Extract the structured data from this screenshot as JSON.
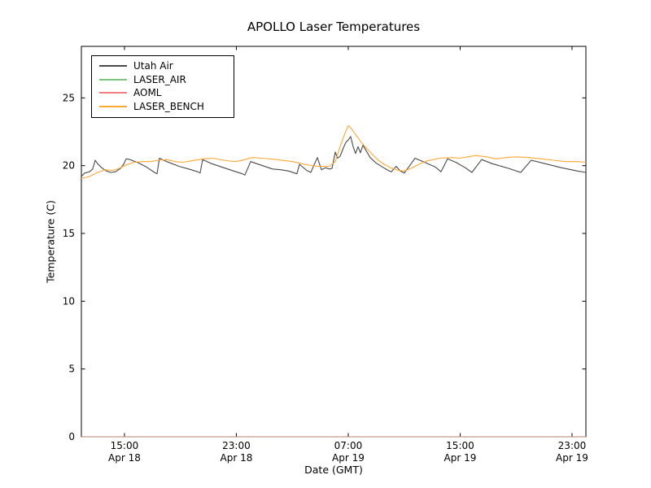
{
  "title": "APOLLO Laser Temperatures",
  "xlabel": "Date (GMT)",
  "ylabel": "Temperature (C)",
  "legend": {
    "position": "upper left",
    "items": [
      {
        "label": "Utah Air",
        "color": "#4a4a4a"
      },
      {
        "label": "LASER_AIR",
        "color": "#7cc47c"
      },
      {
        "label": "AOML",
        "color": "#f28080"
      },
      {
        "label": "LASER_BENCH",
        "color": "#ffa733"
      }
    ]
  },
  "chart_data": {
    "type": "line",
    "title": "APOLLO Laser Temperatures",
    "xlabel": "Date (GMT)",
    "ylabel": "Temperature (C)",
    "grid": false,
    "legend_position": "upper left",
    "x_unit": "hours since Apr 18 00:00 GMT",
    "y_unit": "degrees C",
    "xlim": [
      11.92,
      47.99
    ],
    "ylim": [
      0,
      28.8
    ],
    "y_ticks": [
      0,
      5,
      10,
      15,
      20,
      25
    ],
    "x_ticks": [
      {
        "value": 15,
        "line1": "15:00",
        "line2": "Apr 18"
      },
      {
        "value": 23,
        "line1": "23:00",
        "line2": "Apr 18"
      },
      {
        "value": 31,
        "line1": "07:00",
        "line2": "Apr 19"
      },
      {
        "value": 39,
        "line1": "15:00",
        "line2": "Apr 19"
      },
      {
        "value": 47,
        "line1": "23:00",
        "line2": "Apr 19"
      }
    ],
    "series": [
      {
        "name": "Utah Air",
        "color": "#4a4a4a",
        "points": [
          [
            11.92,
            19.2
          ],
          [
            12.15,
            19.45
          ],
          [
            12.5,
            19.55
          ],
          [
            12.72,
            19.75
          ],
          [
            12.91,
            20.4
          ],
          [
            13.08,
            20.15
          ],
          [
            13.37,
            19.85
          ],
          [
            13.72,
            19.6
          ],
          [
            14.01,
            19.5
          ],
          [
            14.36,
            19.55
          ],
          [
            14.71,
            19.8
          ],
          [
            14.94,
            20.1
          ],
          [
            15.12,
            20.5
          ],
          [
            15.41,
            20.45
          ],
          [
            15.99,
            20.2
          ],
          [
            16.57,
            19.9
          ],
          [
            17.15,
            19.5
          ],
          [
            17.33,
            19.4
          ],
          [
            17.5,
            20.55
          ],
          [
            18.03,
            20.3
          ],
          [
            18.9,
            19.95
          ],
          [
            19.77,
            19.7
          ],
          [
            20.24,
            19.55
          ],
          [
            20.41,
            19.45
          ],
          [
            20.59,
            20.45
          ],
          [
            21.23,
            20.15
          ],
          [
            22.1,
            19.85
          ],
          [
            22.97,
            19.55
          ],
          [
            23.44,
            19.4
          ],
          [
            23.61,
            19.3
          ],
          [
            24.02,
            20.3
          ],
          [
            24.72,
            20.05
          ],
          [
            25.59,
            19.75
          ],
          [
            26.17,
            19.7
          ],
          [
            26.75,
            19.6
          ],
          [
            27.33,
            19.4
          ],
          [
            27.51,
            20.1
          ],
          [
            28.03,
            19.65
          ],
          [
            28.32,
            19.5
          ],
          [
            28.79,
            20.6
          ],
          [
            29.08,
            19.7
          ],
          [
            29.37,
            19.85
          ],
          [
            29.66,
            19.75
          ],
          [
            29.84,
            19.8
          ],
          [
            30.07,
            21.0
          ],
          [
            30.24,
            20.55
          ],
          [
            30.42,
            20.7
          ],
          [
            30.65,
            21.3
          ],
          [
            30.82,
            21.7
          ],
          [
            31.0,
            21.9
          ],
          [
            31.17,
            22.15
          ],
          [
            31.35,
            21.4
          ],
          [
            31.52,
            20.9
          ],
          [
            31.7,
            21.4
          ],
          [
            31.87,
            20.95
          ],
          [
            32.05,
            21.5
          ],
          [
            32.28,
            21.1
          ],
          [
            32.57,
            20.6
          ],
          [
            32.98,
            20.2
          ],
          [
            33.44,
            19.9
          ],
          [
            33.85,
            19.65
          ],
          [
            34.08,
            19.55
          ],
          [
            34.43,
            19.95
          ],
          [
            34.72,
            19.6
          ],
          [
            35.01,
            19.45
          ],
          [
            35.77,
            20.55
          ],
          [
            36.35,
            20.3
          ],
          [
            37.22,
            19.9
          ],
          [
            37.63,
            19.55
          ],
          [
            38.1,
            20.5
          ],
          [
            38.68,
            20.25
          ],
          [
            39.37,
            19.85
          ],
          [
            39.84,
            19.5
          ],
          [
            40.54,
            20.45
          ],
          [
            41.29,
            20.15
          ],
          [
            42.46,
            19.8
          ],
          [
            43.33,
            19.5
          ],
          [
            44.08,
            20.4
          ],
          [
            45.07,
            20.15
          ],
          [
            46.23,
            19.85
          ],
          [
            47.4,
            19.6
          ],
          [
            47.99,
            19.5
          ]
        ]
      },
      {
        "name": "LASER_AIR",
        "color": "#7cc47c",
        "flat_overlay_on_axis": true,
        "points": [
          [
            11.92,
            0
          ],
          [
            47.99,
            0
          ]
        ]
      },
      {
        "name": "AOML",
        "color": "#f28080",
        "flat_overlay_on_axis": true,
        "points": [
          [
            11.92,
            0
          ],
          [
            47.99,
            0
          ]
        ]
      },
      {
        "name": "LASER_BENCH",
        "color": "#ffa733",
        "points": [
          [
            11.92,
            19.05
          ],
          [
            12.5,
            19.2
          ],
          [
            13.08,
            19.5
          ],
          [
            13.66,
            19.7
          ],
          [
            14.13,
            19.65
          ],
          [
            14.54,
            19.75
          ],
          [
            15.12,
            20.05
          ],
          [
            15.7,
            20.25
          ],
          [
            16.28,
            20.3
          ],
          [
            16.86,
            20.3
          ],
          [
            17.44,
            20.4
          ],
          [
            18.03,
            20.45
          ],
          [
            18.61,
            20.3
          ],
          [
            19.19,
            20.25
          ],
          [
            19.77,
            20.35
          ],
          [
            20.64,
            20.5
          ],
          [
            21.34,
            20.55
          ],
          [
            22.1,
            20.4
          ],
          [
            22.85,
            20.3
          ],
          [
            23.26,
            20.35
          ],
          [
            24.14,
            20.6
          ],
          [
            24.83,
            20.55
          ],
          [
            25.88,
            20.45
          ],
          [
            27.04,
            20.3
          ],
          [
            28.09,
            20.05
          ],
          [
            28.79,
            19.95
          ],
          [
            29.66,
            19.95
          ],
          [
            30.07,
            20.3
          ],
          [
            30.42,
            21.4
          ],
          [
            30.77,
            22.4
          ],
          [
            31.0,
            22.95
          ],
          [
            31.17,
            22.8
          ],
          [
            31.46,
            22.4
          ],
          [
            31.87,
            21.8
          ],
          [
            32.28,
            21.3
          ],
          [
            32.74,
            20.8
          ],
          [
            33.15,
            20.4
          ],
          [
            33.56,
            20.1
          ],
          [
            34.02,
            19.85
          ],
          [
            34.6,
            19.65
          ],
          [
            35.01,
            19.6
          ],
          [
            35.48,
            19.8
          ],
          [
            36.06,
            20.1
          ],
          [
            36.64,
            20.35
          ],
          [
            37.51,
            20.55
          ],
          [
            38.39,
            20.6
          ],
          [
            38.97,
            20.55
          ],
          [
            39.55,
            20.65
          ],
          [
            40.13,
            20.75
          ],
          [
            40.89,
            20.65
          ],
          [
            41.58,
            20.5
          ],
          [
            42.28,
            20.6
          ],
          [
            43.04,
            20.65
          ],
          [
            43.91,
            20.6
          ],
          [
            44.78,
            20.5
          ],
          [
            45.65,
            20.4
          ],
          [
            46.52,
            20.3
          ],
          [
            47.4,
            20.3
          ],
          [
            47.99,
            20.25
          ]
        ]
      }
    ]
  }
}
